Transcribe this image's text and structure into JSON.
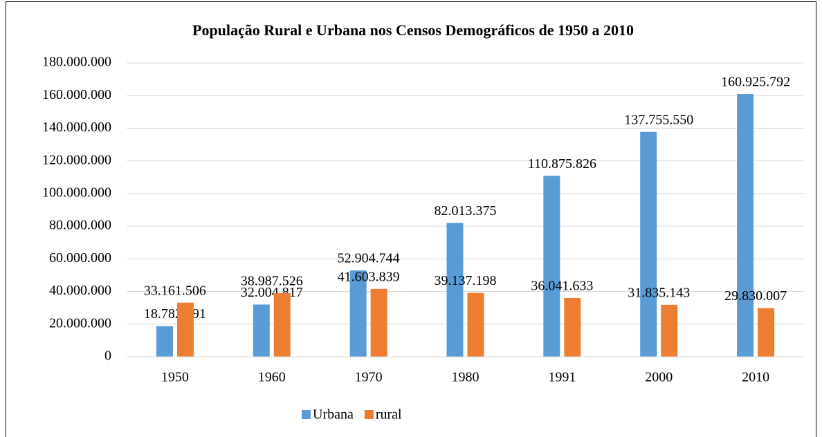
{
  "chart_data": {
    "type": "bar",
    "title": "População Rural e Urbana nos Censos Demográficos de 1950 a 2010",
    "categories": [
      "1950",
      "1960",
      "1970",
      "1980",
      "1991",
      "2000",
      "2010"
    ],
    "series": [
      {
        "name": "Urbana",
        "color": "#5b9bd5",
        "values": [
          18782891,
          32004817,
          52904744,
          82013375,
          110875826,
          137755550,
          160925792
        ],
        "value_labels": [
          "18.782.891",
          "32.004.817",
          "52.904.744",
          "82.013.375",
          "110.875.826",
          "137.755.550",
          "160.925.792"
        ]
      },
      {
        "name": "rural",
        "color": "#ed7d31",
        "values": [
          33161506,
          38987526,
          41603839,
          39137198,
          36041633,
          31835143,
          29830007
        ],
        "value_labels": [
          "33.161.506",
          "38.987.526",
          "41.603.839",
          "39.137.198",
          "36.041.633",
          "31.835.143",
          "29.830.007"
        ]
      }
    ],
    "ylim": [
      0,
      180000000
    ],
    "yticks": [
      0,
      {
        "value": 20000000,
        "label": "20.000.000"
      },
      {
        "value": 40000000,
        "label": "40.000.000"
      },
      {
        "value": 60000000,
        "label": "60.000.000"
      },
      {
        "value": 80000000,
        "label": "80.000.000"
      },
      {
        "value": 100000000,
        "label": "100.000.000"
      },
      {
        "value": 120000000,
        "label": "120.000.000"
      },
      {
        "value": 140000000,
        "label": "140.000.000"
      },
      {
        "value": 160000000,
        "label": "160.000.000"
      },
      {
        "value": 180000000,
        "label": "180.000.000"
      }
    ],
    "grid": true,
    "legend": "bottom"
  }
}
